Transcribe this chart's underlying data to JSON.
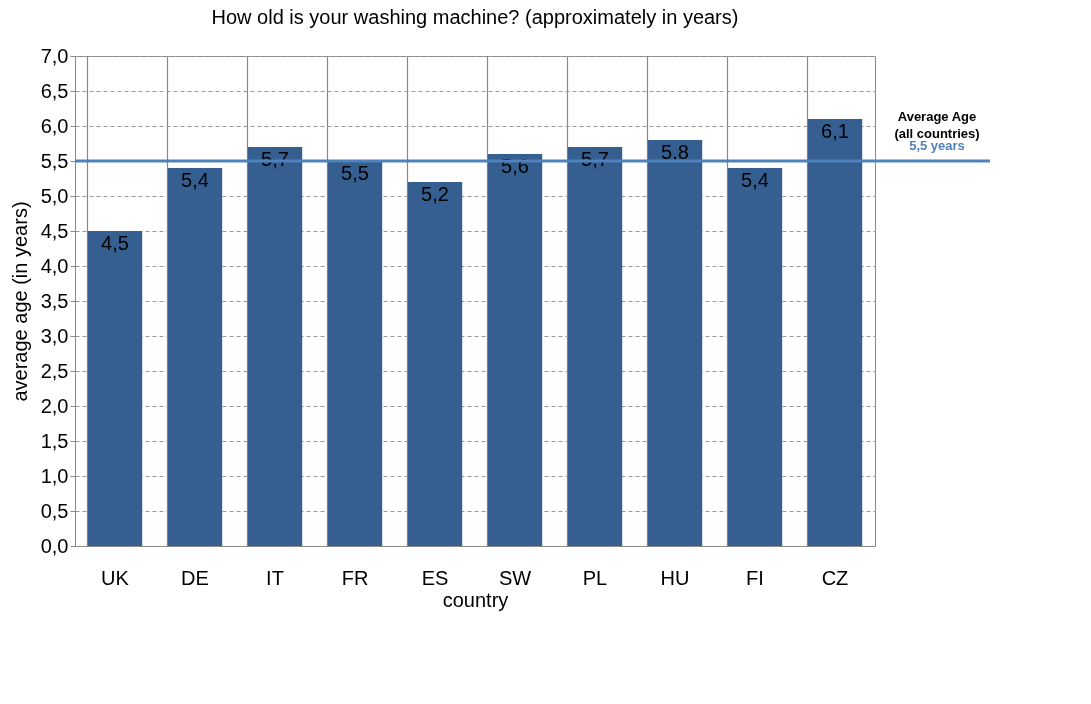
{
  "chart_data": {
    "type": "bar",
    "title": "How old is your washing machine? (approximately in years)",
    "xlabel": "country",
    "ylabel": "average age (in years)",
    "categories": [
      "UK",
      "DE",
      "IT",
      "FR",
      "ES",
      "SW",
      "PL",
      "HU",
      "FI",
      "CZ"
    ],
    "values": [
      4.5,
      5.4,
      5.7,
      5.5,
      5.2,
      5.6,
      5.7,
      5.8,
      5.4,
      6.1
    ],
    "value_labels": [
      "4,5",
      "5,4",
      "5,7",
      "5,5",
      "5,2",
      "5,6",
      "5,7",
      "5,8",
      "5,4",
      "6,1"
    ],
    "color": "#355f91",
    "ylim": [
      0,
      7
    ],
    "yticks": [
      {
        "value": 0,
        "label": "0,0"
      },
      {
        "value": 0.5,
        "label": "0,5"
      },
      {
        "value": 1,
        "label": "1,0"
      },
      {
        "value": 1.5,
        "label": "1,5"
      },
      {
        "value": 2,
        "label": "2,0"
      },
      {
        "value": 2.5,
        "label": "2,5"
      },
      {
        "value": 3,
        "label": "3,0"
      },
      {
        "value": 3.5,
        "label": "3,5"
      },
      {
        "value": 4,
        "label": "4,0"
      },
      {
        "value": 4.5,
        "label": "4,5"
      },
      {
        "value": 5,
        "label": "5,0"
      },
      {
        "value": 5.5,
        "label": "5,5"
      },
      {
        "value": 6,
        "label": "6,0"
      },
      {
        "value": 6.5,
        "label": "6,5"
      },
      {
        "value": 7,
        "label": "7,0"
      }
    ],
    "grid": true,
    "ref_lines": [
      {
        "axis": "y",
        "value": 5.5,
        "label": "Average Age (all countries)",
        "color": "#4f81bd"
      }
    ],
    "annotations": [
      "5,5 years"
    ]
  }
}
